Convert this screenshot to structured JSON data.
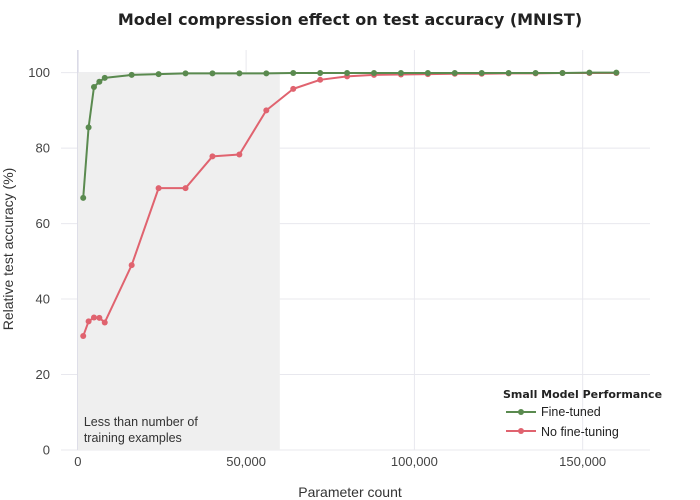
{
  "chart_data": {
    "type": "line",
    "title": "Model compression effect on test accuracy (MNIST)",
    "xlabel": "Parameter count",
    "ylabel": "Relative test accuracy (%)",
    "xlim": [
      -5000,
      170000
    ],
    "ylim": [
      0,
      106
    ],
    "x_ticks": [
      0,
      50000,
      100000,
      150000
    ],
    "x_tick_labels": [
      "0",
      "50,000",
      "100,000",
      "150,000"
    ],
    "y_ticks": [
      0,
      20,
      40,
      60,
      80,
      100
    ],
    "y_tick_labels": [
      "0",
      "20",
      "40",
      "60",
      "80",
      "100"
    ],
    "grid": true,
    "legend": {
      "title": "Small Model Performance",
      "position": "bottom-right"
    },
    "shaded_region": {
      "x0": 0,
      "x1": 60000,
      "color": "#efefef",
      "label_lines": [
        "Less than number of",
        "training examples"
      ]
    },
    "series": [
      {
        "name": "Fine-tuned",
        "color": "#5a8a4f",
        "x": [
          1600,
          3200,
          4800,
          6400,
          8000,
          16000,
          24000,
          32000,
          40000,
          48000,
          56000,
          64000,
          72000,
          80000,
          88000,
          96000,
          104000,
          112000,
          120000,
          128000,
          136000,
          144000,
          152000,
          160000
        ],
        "y": [
          66.8,
          85.5,
          96.2,
          97.6,
          98.6,
          99.4,
          99.6,
          99.8,
          99.8,
          99.8,
          99.8,
          99.9,
          99.9,
          99.9,
          99.9,
          99.9,
          99.9,
          99.9,
          99.9,
          99.9,
          99.9,
          99.9,
          100.0,
          100.0
        ]
      },
      {
        "name": "No fine-tuning",
        "color": "#e0636f",
        "x": [
          1600,
          3200,
          4800,
          6400,
          8000,
          16000,
          24000,
          32000,
          40000,
          48000,
          56000,
          64000,
          72000,
          80000,
          88000,
          96000,
          104000,
          112000,
          120000,
          128000,
          136000,
          144000,
          152000,
          160000
        ],
        "y": [
          30.2,
          34.1,
          35.1,
          35.0,
          33.8,
          49.0,
          69.4,
          69.4,
          77.8,
          78.3,
          90.0,
          95.7,
          98.1,
          99.0,
          99.4,
          99.5,
          99.6,
          99.7,
          99.7,
          99.8,
          99.8,
          99.9,
          99.9,
          99.9
        ]
      }
    ]
  }
}
